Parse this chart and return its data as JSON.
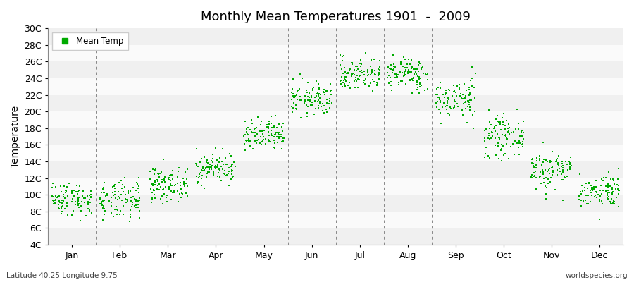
{
  "title": "Monthly Mean Temperatures 1901  -  2009",
  "ylabel": "Temperature",
  "xlabel_months": [
    "Jan",
    "Feb",
    "Mar",
    "Apr",
    "May",
    "Jun",
    "Jul",
    "Aug",
    "Sep",
    "Oct",
    "Nov",
    "Dec"
  ],
  "ytick_labels": [
    "4C",
    "6C",
    "8C",
    "10C",
    "12C",
    "14C",
    "16C",
    "18C",
    "20C",
    "22C",
    "24C",
    "26C",
    "28C",
    "30C"
  ],
  "ytick_values": [
    4,
    6,
    8,
    10,
    12,
    14,
    16,
    18,
    20,
    22,
    24,
    26,
    28,
    30
  ],
  "ylim": [
    4,
    30
  ],
  "xlim": [
    0,
    12
  ],
  "dot_color": "#00aa00",
  "background_color": "#ffffff",
  "band_colors": [
    "#f0f0f0",
    "#fafafa"
  ],
  "grid_color": "#888888",
  "legend_label": "Mean Temp",
  "bottom_left_text": "Latitude 40.25 Longitude 9.75",
  "bottom_right_text": "worldspecies.org",
  "n_years": 109,
  "monthly_means": [
    9.5,
    9.2,
    11.2,
    13.2,
    17.0,
    21.5,
    24.5,
    24.5,
    21.5,
    17.0,
    13.0,
    10.5
  ],
  "monthly_stds": [
    1.0,
    1.2,
    1.0,
    0.9,
    1.0,
    1.0,
    1.0,
    1.0,
    1.2,
    1.2,
    1.2,
    1.0
  ],
  "seed": 42
}
